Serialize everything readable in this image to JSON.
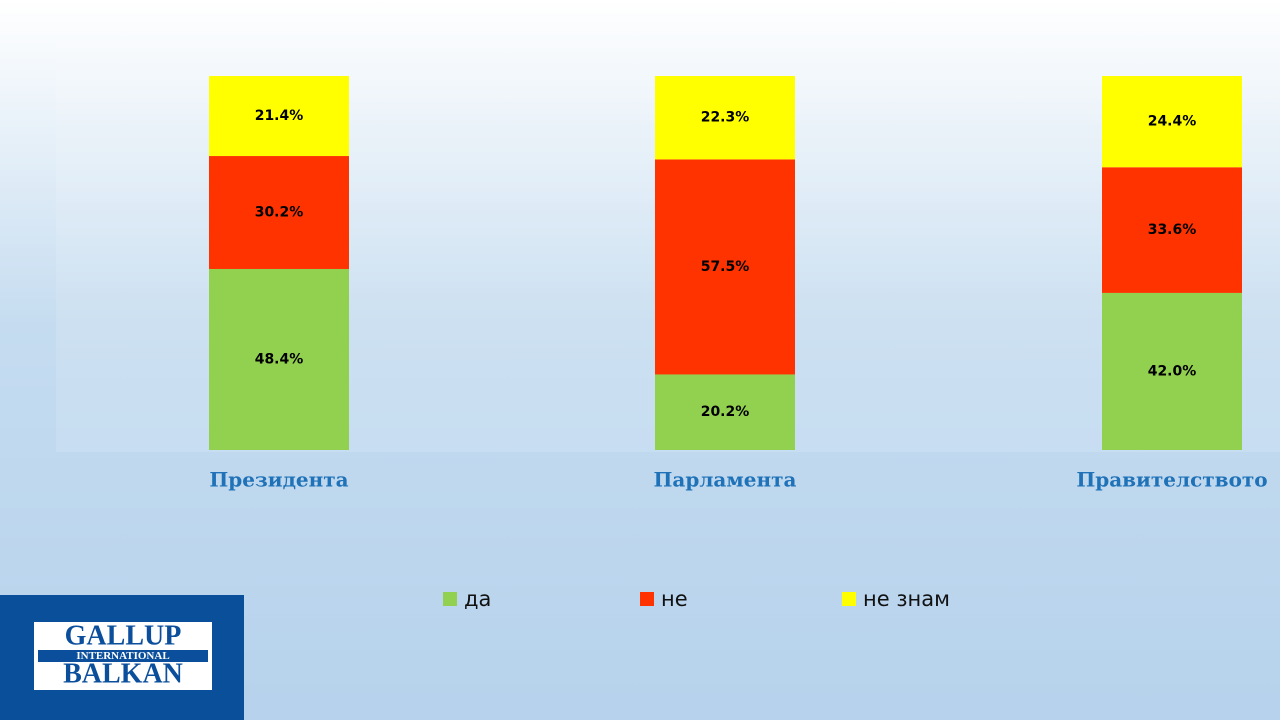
{
  "chart_data": {
    "type": "stacked_bar",
    "categories": [
      "Президента",
      "Парламента",
      "Правителството"
    ],
    "series": [
      {
        "name": "да",
        "color": "#92d050",
        "values": [
          48.4,
          20.2,
          42.0
        ],
        "value_labels": [
          "48.4%",
          "20.2%",
          "42.0%"
        ]
      },
      {
        "name": "не",
        "color": "#ff3300",
        "values": [
          30.2,
          57.5,
          33.6
        ],
        "value_labels": [
          "30.2%",
          "57.5%",
          "33.6%"
        ]
      },
      {
        "name": "не знам",
        "color": "#ffff00",
        "values": [
          21.4,
          22.3,
          24.4
        ],
        "value_labels": [
          "21.4%",
          "22.3%",
          "24.4%"
        ]
      }
    ],
    "ylim": [
      0,
      100
    ],
    "legend": "bottom"
  },
  "logo": {
    "top": "GALLUP",
    "middle": "INTERNATIONAL",
    "bottom": "BALKAN"
  }
}
